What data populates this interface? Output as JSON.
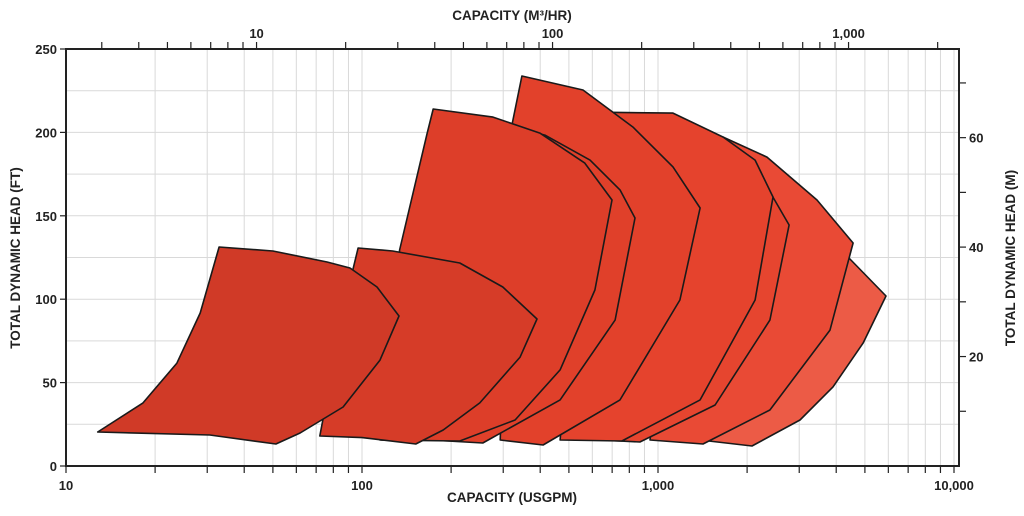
{
  "chart_data": {
    "type": "area",
    "title": "",
    "xlabel": "CAPACITY (USGPM)",
    "x2label": "CAPACITY (M³/HR)",
    "ylabel": "TOTAL DYNAMIC HEAD (FT)",
    "y2label": "TOTAL DYNAMIC HEAD (M)",
    "xscale": "log",
    "xlim": [
      10,
      11000
    ],
    "ylim": [
      0,
      250
    ],
    "grid": true,
    "x_ticks": [
      {
        "v": 10,
        "label": "10"
      },
      {
        "v": 100,
        "label": "100"
      },
      {
        "v": 1000,
        "label": "1,000"
      },
      {
        "v": 10000,
        "label": "10,000"
      }
    ],
    "x2_ticks": [
      {
        "v": 10,
        "label": "10"
      },
      {
        "v": 100,
        "label": "100"
      },
      {
        "v": 1000,
        "label": "1,000"
      }
    ],
    "y_ticks": [
      {
        "v": 0,
        "label": "0"
      },
      {
        "v": 50,
        "label": "50"
      },
      {
        "v": 100,
        "label": "100"
      },
      {
        "v": 150,
        "label": "150"
      },
      {
        "v": 200,
        "label": "200"
      },
      {
        "v": 250,
        "label": "250"
      }
    ],
    "y2_ticks": [
      {
        "v": 20,
        "label": "20"
      },
      {
        "v": 40,
        "label": "40"
      },
      {
        "v": 60,
        "label": "60"
      }
    ],
    "gpm_per_m3hr": 4.403,
    "ft_per_m": 3.2808,
    "series": [
      {
        "name": "pump-range-9",
        "color": "#ec5b46",
        "points": [
          [
            1387,
            15.6
          ],
          [
            3524,
            150.5
          ],
          [
            4385,
            125.3
          ],
          [
            5891,
            101.9
          ],
          [
            4932,
            73.7
          ],
          [
            3901,
            47.4
          ],
          [
            3018,
            27.6
          ],
          [
            2078,
            12.0
          ]
        ]
      },
      {
        "name": "pump-range-8",
        "color": "#e94a35",
        "points": [
          [
            940,
            15.6
          ],
          [
            1283,
            195.4
          ],
          [
            1660,
            197.2
          ],
          [
            2335,
            185.2
          ],
          [
            3444,
            159.5
          ],
          [
            4560,
            133.7
          ],
          [
            3811,
            81.5
          ],
          [
            2388,
            33.6
          ],
          [
            1419,
            13.2
          ]
        ]
      },
      {
        "name": "pump-range-7",
        "color": "#e6452f",
        "points": [
          [
            637,
            15.6
          ],
          [
            940,
            201.4
          ],
          [
            1660,
            195.4
          ],
          [
            2213,
            174.5
          ],
          [
            2773,
            144.5
          ],
          [
            2388,
            87.5
          ],
          [
            1559,
            36.6
          ],
          [
            869,
            14.4
          ]
        ]
      },
      {
        "name": "pump-range-6",
        "color": "#e5432d",
        "points": [
          [
            467,
            15.6
          ],
          [
            589,
            212.2
          ],
          [
            1124,
            211.6
          ],
          [
            1660,
            197.2
          ],
          [
            2128,
            183.4
          ],
          [
            2447,
            161.3
          ],
          [
            2128,
            99.5
          ],
          [
            1387,
            39.6
          ],
          [
            755,
            15.0
          ]
        ]
      },
      {
        "name": "pump-range-5",
        "color": "#e2412b",
        "points": [
          [
            293,
            15.6
          ],
          [
            321,
            204.4
          ],
          [
            347,
            233.8
          ],
          [
            558,
            225.4
          ],
          [
            823,
            203.2
          ],
          [
            1124,
            179.3
          ],
          [
            1387,
            154.7
          ],
          [
            1186,
            99.5
          ],
          [
            744,
            39.6
          ],
          [
            409,
            12.6
          ]
        ]
      },
      {
        "name": "pump-range-4",
        "color": "#e0402a",
        "points": [
          [
            170,
            15.6
          ],
          [
            250,
            208.6
          ],
          [
            415,
            198.4
          ],
          [
            589,
            183.4
          ],
          [
            744,
            165.5
          ],
          [
            836,
            148.7
          ],
          [
            716,
            87.5
          ],
          [
            467,
            39.6
          ],
          [
            256,
            13.8
          ]
        ]
      },
      {
        "name": "pump-range-3",
        "color": "#dd3e29",
        "points": [
          [
            115,
            15.6
          ],
          [
            134,
            129.5
          ],
          [
            166,
            199.6
          ],
          [
            174,
            214.0
          ],
          [
            277,
            209.2
          ],
          [
            399,
            199.6
          ],
          [
            566,
            181.6
          ],
          [
            699,
            159.5
          ],
          [
            612,
            105.5
          ],
          [
            467,
            57.6
          ],
          [
            329,
            27.6
          ],
          [
            214,
            15.0
          ]
        ]
      },
      {
        "name": "pump-range-2",
        "color": "#d63c28",
        "points": [
          [
            72,
            18
          ],
          [
            88,
            99.5
          ],
          [
            97,
            130.7
          ],
          [
            127,
            128.9
          ],
          [
            214,
            121.7
          ],
          [
            299,
            107.3
          ],
          [
            390,
            88.1
          ],
          [
            342,
            65.3
          ],
          [
            250,
            37.8
          ],
          [
            188,
            21.6
          ],
          [
            152,
            13.2
          ],
          [
            100,
            17
          ]
        ]
      },
      {
        "name": "pump-range-1",
        "color": "#d03a27",
        "points": [
          [
            12.8,
            20.4
          ],
          [
            18.2,
            37.8
          ],
          [
            23.7,
            61.7
          ],
          [
            28.4,
            91.7
          ],
          [
            32.9,
            131.3
          ],
          [
            50.0,
            128.9
          ],
          [
            76.2,
            122.3
          ],
          [
            91.1,
            118.7
          ],
          [
            112.4,
            107.3
          ],
          [
            133.4,
            89.9
          ],
          [
            115,
            63.5
          ],
          [
            86.3,
            35.4
          ],
          [
            61.8,
            19.8
          ],
          [
            51.2,
            13.2
          ],
          [
            30.6,
            18.6
          ]
        ]
      }
    ]
  }
}
